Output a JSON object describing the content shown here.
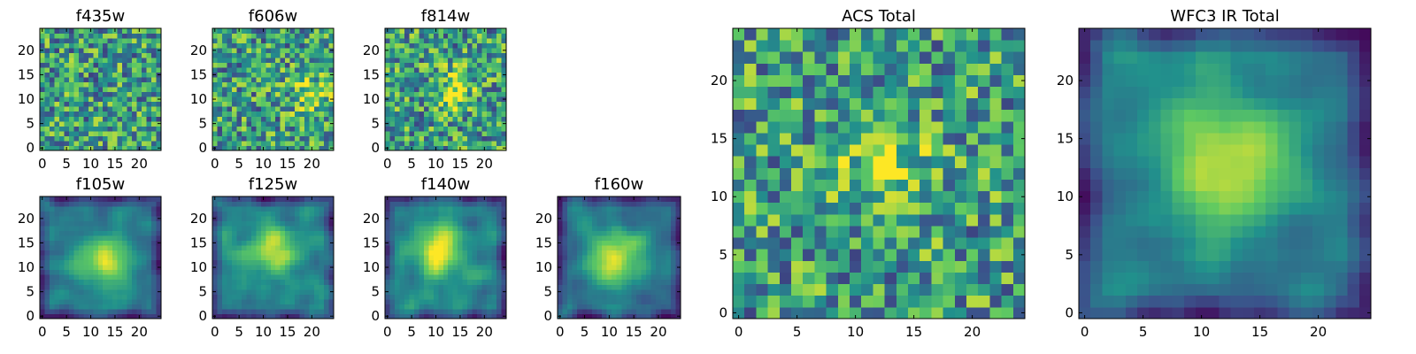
{
  "figure": {
    "colormap": "viridis",
    "colormap_stops": [
      "#440154",
      "#3b528b",
      "#21918c",
      "#5ec962",
      "#fde725"
    ]
  },
  "chart_data": [
    {
      "type": "heatmap",
      "title": "f435w",
      "grid_size": 25,
      "xlim": [
        0,
        24
      ],
      "ylim": [
        0,
        24
      ],
      "xticks": [
        0,
        5,
        10,
        15,
        20
      ],
      "yticks": [
        0,
        5,
        10,
        15,
        20
      ],
      "grid": false,
      "texture": "noise",
      "peak": null
    },
    {
      "type": "heatmap",
      "title": "f606w",
      "grid_size": 25,
      "xlim": [
        0,
        24
      ],
      "ylim": [
        0,
        24
      ],
      "xticks": [
        0,
        5,
        10,
        15,
        20
      ],
      "yticks": [
        0,
        5,
        10,
        15,
        20
      ],
      "grid": false,
      "texture": "noise",
      "peak": [
        20,
        11
      ]
    },
    {
      "type": "heatmap",
      "title": "f814w",
      "grid_size": 25,
      "xlim": [
        0,
        24
      ],
      "ylim": [
        0,
        24
      ],
      "xticks": [
        0,
        5,
        10,
        15,
        20
      ],
      "yticks": [
        0,
        5,
        10,
        15,
        20
      ],
      "grid": false,
      "texture": "noise",
      "peak": [
        14,
        12
      ]
    },
    {
      "type": "heatmap",
      "title": "f105w",
      "grid_size": 25,
      "xlim": [
        0,
        24
      ],
      "ylim": [
        0,
        24
      ],
      "xticks": [
        0,
        5,
        10,
        15,
        20
      ],
      "yticks": [
        0,
        5,
        10,
        15,
        20
      ],
      "grid": false,
      "texture": "smooth",
      "peak": [
        13,
        12
      ]
    },
    {
      "type": "heatmap",
      "title": "f125w",
      "grid_size": 25,
      "xlim": [
        0,
        24
      ],
      "ylim": [
        0,
        24
      ],
      "xticks": [
        0,
        5,
        10,
        15,
        20
      ],
      "yticks": [
        0,
        5,
        10,
        15,
        20
      ],
      "grid": false,
      "texture": "smooth",
      "peak": [
        12,
        13
      ]
    },
    {
      "type": "heatmap",
      "title": "f140w",
      "grid_size": 25,
      "xlim": [
        0,
        24
      ],
      "ylim": [
        0,
        24
      ],
      "xticks": [
        0,
        5,
        10,
        15,
        20
      ],
      "yticks": [
        0,
        5,
        10,
        15,
        20
      ],
      "grid": false,
      "texture": "smooth",
      "peak": [
        11,
        13
      ]
    },
    {
      "type": "heatmap",
      "title": "f160w",
      "grid_size": 25,
      "xlim": [
        0,
        24
      ],
      "ylim": [
        0,
        24
      ],
      "xticks": [
        0,
        5,
        10,
        15,
        20
      ],
      "yticks": [
        0,
        5,
        10,
        15,
        20
      ],
      "grid": false,
      "texture": "smooth",
      "peak": [
        11,
        12
      ]
    },
    {
      "type": "heatmap",
      "title": "ACS Total",
      "grid_size": 25,
      "xlim": [
        0,
        24
      ],
      "ylim": [
        0,
        24
      ],
      "xticks": [
        0,
        5,
        10,
        15,
        20
      ],
      "yticks": [
        0,
        5,
        10,
        15,
        20
      ],
      "grid": false,
      "texture": "noise",
      "peak": [
        13,
        13
      ]
    },
    {
      "type": "heatmap",
      "title": "WFC3 IR Total",
      "grid_size": 25,
      "xlim": [
        0,
        24
      ],
      "ylim": [
        0,
        24
      ],
      "xticks": [
        0,
        5,
        10,
        15,
        20
      ],
      "yticks": [
        0,
        5,
        10,
        15,
        20
      ],
      "grid": false,
      "texture": "smooth",
      "peak": [
        12,
        13
      ]
    }
  ]
}
